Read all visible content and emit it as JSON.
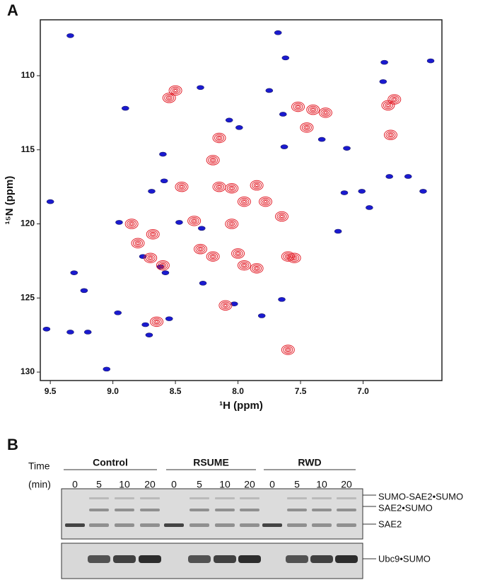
{
  "panel_a": {
    "label": "A",
    "x_label": "¹H (ppm)",
    "y_label": "¹⁵N (ppm)",
    "xlim": [
      9.58,
      6.37
    ],
    "ylim": [
      106.23,
      130.57
    ],
    "xticks": [
      9.5,
      {
        "value": 9,
        "label": "9.0"
      },
      8.5,
      {
        "value": 8,
        "label": "8.0"
      },
      7.5,
      {
        "value": 7,
        "label": "7.0"
      }
    ],
    "yticks": [
      110,
      115,
      120,
      125,
      130
    ],
    "series": [
      {
        "color": "#1a1ad0",
        "peaks": [
          [
            9.34,
            107.3
          ],
          [
            7.68,
            107.1
          ],
          [
            7.62,
            108.8
          ],
          [
            6.83,
            109.1
          ],
          [
            6.46,
            109.0
          ],
          [
            6.84,
            110.4
          ],
          [
            8.3,
            110.8
          ],
          [
            7.75,
            111.0
          ],
          [
            8.9,
            112.2
          ],
          [
            8.07,
            113.0
          ],
          [
            7.64,
            112.6
          ],
          [
            7.99,
            113.5
          ],
          [
            7.33,
            114.3
          ],
          [
            7.63,
            114.8
          ],
          [
            7.13,
            114.9
          ],
          [
            8.6,
            115.3
          ],
          [
            8.59,
            117.1
          ],
          [
            8.69,
            117.8
          ],
          [
            6.79,
            116.8
          ],
          [
            6.64,
            116.8
          ],
          [
            6.52,
            117.8
          ],
          [
            7.15,
            117.9
          ],
          [
            7.01,
            117.8
          ],
          [
            6.95,
            118.9
          ],
          [
            9.5,
            118.5
          ],
          [
            8.95,
            119.9
          ],
          [
            7.2,
            120.5
          ],
          [
            8.47,
            119.9
          ],
          [
            8.29,
            120.3
          ],
          [
            9.31,
            123.3
          ],
          [
            9.23,
            124.5
          ],
          [
            8.58,
            123.3
          ],
          [
            8.28,
            124.0
          ],
          [
            8.03,
            125.4
          ],
          [
            7.65,
            125.1
          ],
          [
            7.81,
            126.2
          ],
          [
            8.96,
            126.0
          ],
          [
            8.55,
            126.4
          ],
          [
            8.71,
            127.5
          ],
          [
            9.53,
            127.1
          ],
          [
            9.2,
            127.3
          ],
          [
            9.34,
            127.3
          ],
          [
            8.74,
            126.8
          ],
          [
            9.05,
            129.8
          ],
          [
            8.76,
            122.2
          ],
          [
            8.62,
            122.9
          ]
        ]
      },
      {
        "color": "#e3202a",
        "peaks": [
          [
            8.5,
            111.0
          ],
          [
            8.55,
            111.5
          ],
          [
            7.52,
            112.1
          ],
          [
            7.4,
            112.3
          ],
          [
            6.8,
            112.0
          ],
          [
            6.75,
            111.6
          ],
          [
            8.15,
            114.2
          ],
          [
            8.2,
            115.7
          ],
          [
            8.45,
            117.5
          ],
          [
            8.15,
            117.5
          ],
          [
            8.05,
            117.6
          ],
          [
            7.95,
            118.5
          ],
          [
            8.35,
            119.8
          ],
          [
            8.05,
            120.0
          ],
          [
            8.3,
            121.7
          ],
          [
            8.2,
            122.2
          ],
          [
            8.0,
            122.0
          ],
          [
            7.95,
            122.8
          ],
          [
            7.85,
            123.0
          ],
          [
            8.6,
            122.8
          ],
          [
            8.7,
            122.3
          ],
          [
            7.6,
            122.2
          ],
          [
            7.55,
            122.3
          ],
          [
            7.6,
            128.5
          ],
          [
            8.85,
            120.0
          ],
          [
            8.68,
            120.7
          ],
          [
            7.45,
            113.5
          ],
          [
            6.78,
            114.0
          ],
          [
            8.1,
            125.5
          ],
          [
            7.78,
            118.5
          ],
          [
            7.65,
            119.5
          ],
          [
            7.85,
            117.4
          ],
          [
            8.65,
            126.6
          ],
          [
            8.8,
            121.3
          ],
          [
            7.3,
            112.5
          ]
        ]
      }
    ]
  },
  "panel_b": {
    "label": "B",
    "time_label": "Time",
    "unit_label": "(min)",
    "groups": [
      {
        "name": "Control",
        "times": [
          0,
          5,
          10,
          20
        ]
      },
      {
        "name": "RSUME",
        "times": [
          0,
          5,
          10,
          20
        ]
      },
      {
        "name": "RWD",
        "times": [
          0,
          5,
          10,
          20
        ]
      }
    ],
    "band_labels": [
      "SUMO-SAE2•SUMO",
      "SAE2•SUMO",
      "SAE2",
      "Ubc9•SUMO"
    ]
  }
}
